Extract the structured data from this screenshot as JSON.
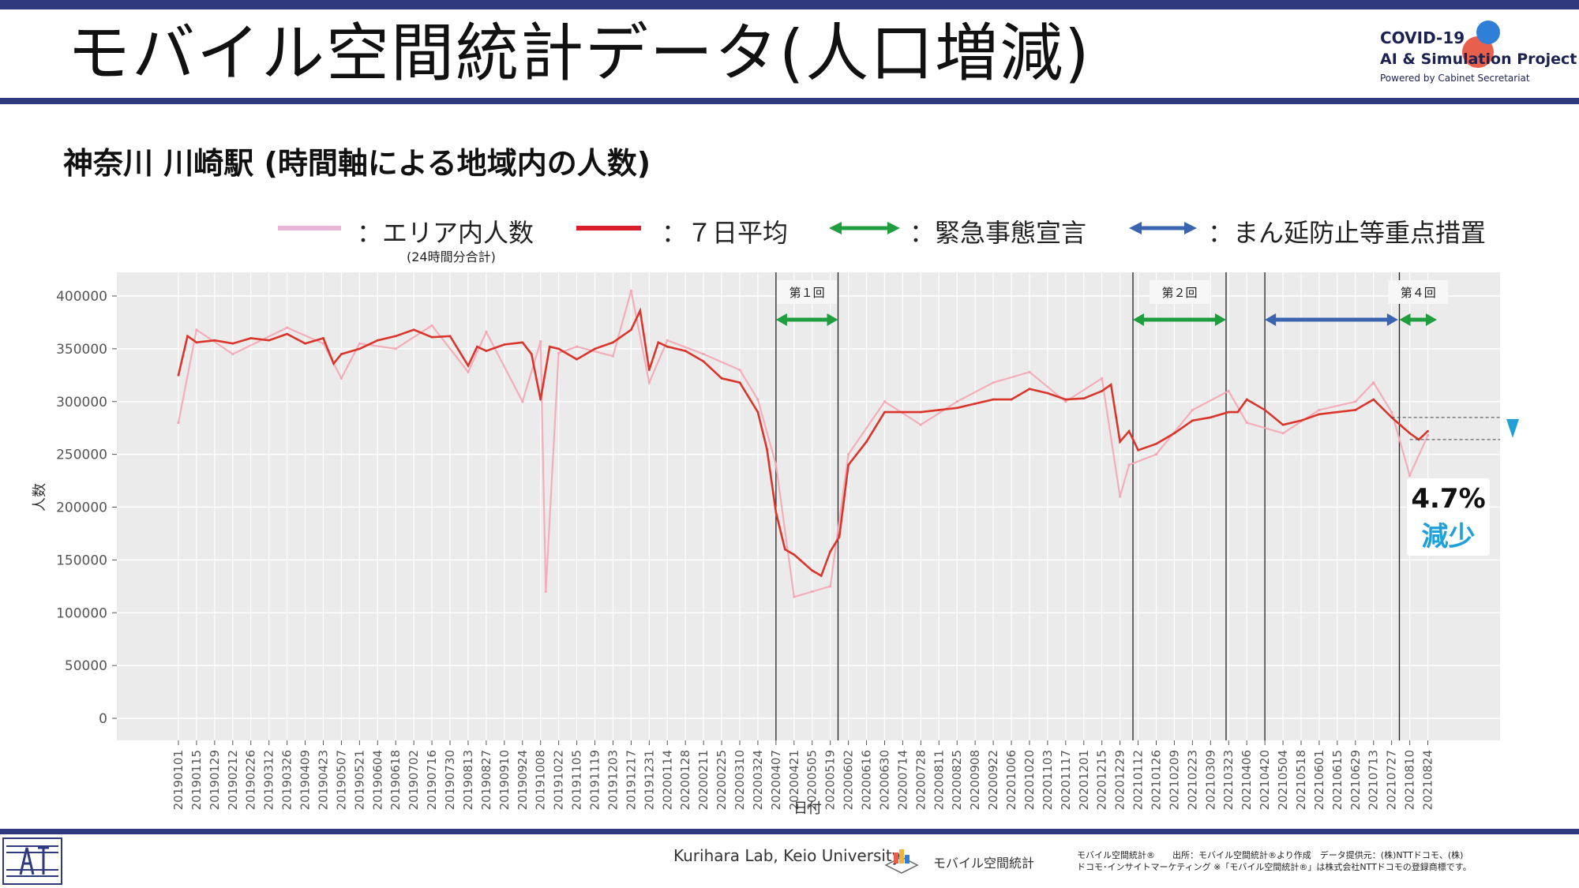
{
  "header": {
    "title": "モバイル空間統計データ(人口増減)",
    "logo_line1": "COVID-19",
    "logo_line2": "AI & Simulation Project",
    "logo_line3": "Powered by Cabinet Secretariat"
  },
  "subtitle": "神奈川 川崎駅 (時間軸による地域内の人数)",
  "legend": {
    "pink_label": "：エリア内人数",
    "pink_sub": "(24時間分合計)",
    "red_label": "：７日平均",
    "green_label": "：緊急事態宣言",
    "blue_label": "：まん延防止等重点措置"
  },
  "annotation": {
    "percent": "4.7%",
    "direction": "減少"
  },
  "footer": {
    "credit": "Kurihara Lab, Keio University",
    "mobile_logo_text": "モバイル空間統計",
    "source_line1": "モバイル空間統計®　　出所：モバイル空間統計®より作成　データ提供元：(株)NTTドコモ、(株)",
    "source_line2": "ドコモ･インサイトマーケティング ※「モバイル空間統計®」は株式会社NTTドコモの登録商標です。"
  },
  "colors": {
    "header_bar": "#2f3a7e",
    "panel_bg": "#ebebeb",
    "daily": "#f4a7b5",
    "avg": "#d9352b",
    "emergency": "#1e9e3e",
    "priority": "#3a64b0",
    "highlight": "#1fa0d8"
  },
  "chart_data": {
    "type": "line",
    "xlabel": "日付",
    "ylabel": "人数",
    "ylim": [
      0,
      400000
    ],
    "y_ticks": [
      0,
      50000,
      100000,
      150000,
      200000,
      250000,
      300000,
      350000,
      400000
    ],
    "x_ticks": [
      "20190101",
      "20190115",
      "20190129",
      "20190212",
      "20190226",
      "20190312",
      "20190326",
      "20190409",
      "20190423",
      "20190507",
      "20190521",
      "20190604",
      "20190618",
      "20190702",
      "20190716",
      "20190730",
      "20190813",
      "20190827",
      "20190910",
      "20190924",
      "20191008",
      "20191022",
      "20191105",
      "20191119",
      "20191203",
      "20191217",
      "20191231",
      "20200114",
      "20200128",
      "20200211",
      "20200225",
      "20200310",
      "20200324",
      "20200407",
      "20200421",
      "20200505",
      "20200519",
      "20200602",
      "20200616",
      "20200630",
      "20200714",
      "20200728",
      "20200811",
      "20200825",
      "20200908",
      "20200922",
      "20201006",
      "20201020",
      "20201103",
      "20201117",
      "20201201",
      "20201215",
      "20201229",
      "20210112",
      "20210126",
      "20210209",
      "20210223",
      "20210309",
      "20210323",
      "20210406",
      "20210420",
      "20210504",
      "20210518",
      "20210601",
      "20210615",
      "20210629",
      "20210713",
      "20210727",
      "20210810",
      "20210824"
    ],
    "series": [
      {
        "name": "エリア内人数",
        "kind": "daily",
        "x": [
          "20190101",
          "20190115",
          "20190212",
          "20190326",
          "20190423",
          "20190507",
          "20190521",
          "20190618",
          "20190716",
          "20190813",
          "20190827",
          "20190924",
          "20191008",
          "20191012",
          "20191022",
          "20191105",
          "20191203",
          "20191217",
          "20191231",
          "20200114",
          "20200211",
          "20200310",
          "20200324",
          "20200407",
          "20200421",
          "20200505",
          "20200519",
          "20200602",
          "20200630",
          "20200728",
          "20200825",
          "20200922",
          "20201020",
          "20201117",
          "20201215",
          "20201229",
          "20210105",
          "20210126",
          "20210223",
          "20210323",
          "20210406",
          "20210504",
          "20210601",
          "20210629",
          "20210713",
          "20210727",
          "20210810",
          "20210824"
        ],
        "values": [
          280000,
          368000,
          345000,
          370000,
          355000,
          322000,
          355000,
          350000,
          372000,
          328000,
          366000,
          300000,
          357000,
          120000,
          346000,
          352000,
          343000,
          405000,
          318000,
          358000,
          345000,
          330000,
          302000,
          240000,
          115000,
          120000,
          125000,
          250000,
          300000,
          278000,
          300000,
          318000,
          328000,
          300000,
          322000,
          210000,
          240000,
          250000,
          292000,
          310000,
          280000,
          270000,
          292000,
          300000,
          318000,
          290000,
          230000,
          268000
        ]
      },
      {
        "name": "７日平均",
        "kind": "avg",
        "x": [
          "20190101",
          "20190108",
          "20190115",
          "20190129",
          "20190212",
          "20190226",
          "20190312",
          "20190326",
          "20190409",
          "20190423",
          "20190501",
          "20190507",
          "20190521",
          "20190604",
          "20190618",
          "20190702",
          "20190716",
          "20190730",
          "20190813",
          "20190820",
          "20190827",
          "20190910",
          "20190924",
          "20191001",
          "20191008",
          "20191015",
          "20191022",
          "20191105",
          "20191119",
          "20191203",
          "20191217",
          "20191224",
          "20191231",
          "20200107",
          "20200114",
          "20200128",
          "20200211",
          "20200225",
          "20200310",
          "20200324",
          "20200331",
          "20200407",
          "20200414",
          "20200421",
          "20200505",
          "20200512",
          "20200519",
          "20200526",
          "20200602",
          "20200616",
          "20200630",
          "20200714",
          "20200728",
          "20200811",
          "20200825",
          "20200908",
          "20200922",
          "20201006",
          "20201020",
          "20201103",
          "20201117",
          "20201201",
          "20201215",
          "20201222",
          "20201229",
          "20210105",
          "20210112",
          "20210126",
          "20210209",
          "20210223",
          "20210309",
          "20210323",
          "20210330",
          "20210406",
          "20210420",
          "20210504",
          "20210518",
          "20210601",
          "20210615",
          "20210629",
          "20210713",
          "20210727",
          "20210810",
          "20210817",
          "20210824"
        ],
        "values": [
          325000,
          362000,
          356000,
          358000,
          355000,
          360000,
          358000,
          364000,
          355000,
          360000,
          336000,
          345000,
          350000,
          358000,
          362000,
          368000,
          361000,
          362000,
          334000,
          352000,
          348000,
          354000,
          356000,
          345000,
          302000,
          352000,
          350000,
          340000,
          350000,
          356000,
          368000,
          386000,
          330000,
          356000,
          352000,
          348000,
          338000,
          322000,
          318000,
          290000,
          255000,
          195000,
          160000,
          155000,
          140000,
          135000,
          158000,
          172000,
          240000,
          262000,
          290000,
          290000,
          290000,
          292000,
          294000,
          298000,
          302000,
          302000,
          312000,
          308000,
          302000,
          303000,
          310000,
          316000,
          262000,
          272000,
          254000,
          260000,
          270000,
          282000,
          285000,
          290000,
          290000,
          302000,
          292000,
          278000,
          282000,
          288000,
          290000,
          292000,
          302000,
          285000,
          270000,
          264000,
          272000
        ]
      }
    ],
    "events": [
      {
        "label": "第１回",
        "start": "20200407",
        "end": "20200525",
        "type": "緊急事態宣言"
      },
      {
        "label": "第２回",
        "start": "20210108",
        "end": "20210321",
        "type": "緊急事態宣言"
      },
      {
        "label": "",
        "start": "20210420",
        "end": "20210801",
        "type": "まん延防止等重点措置"
      },
      {
        "label": "第４回",
        "start": "20210802",
        "end": "20210831",
        "type": "緊急事態宣言"
      }
    ]
  }
}
